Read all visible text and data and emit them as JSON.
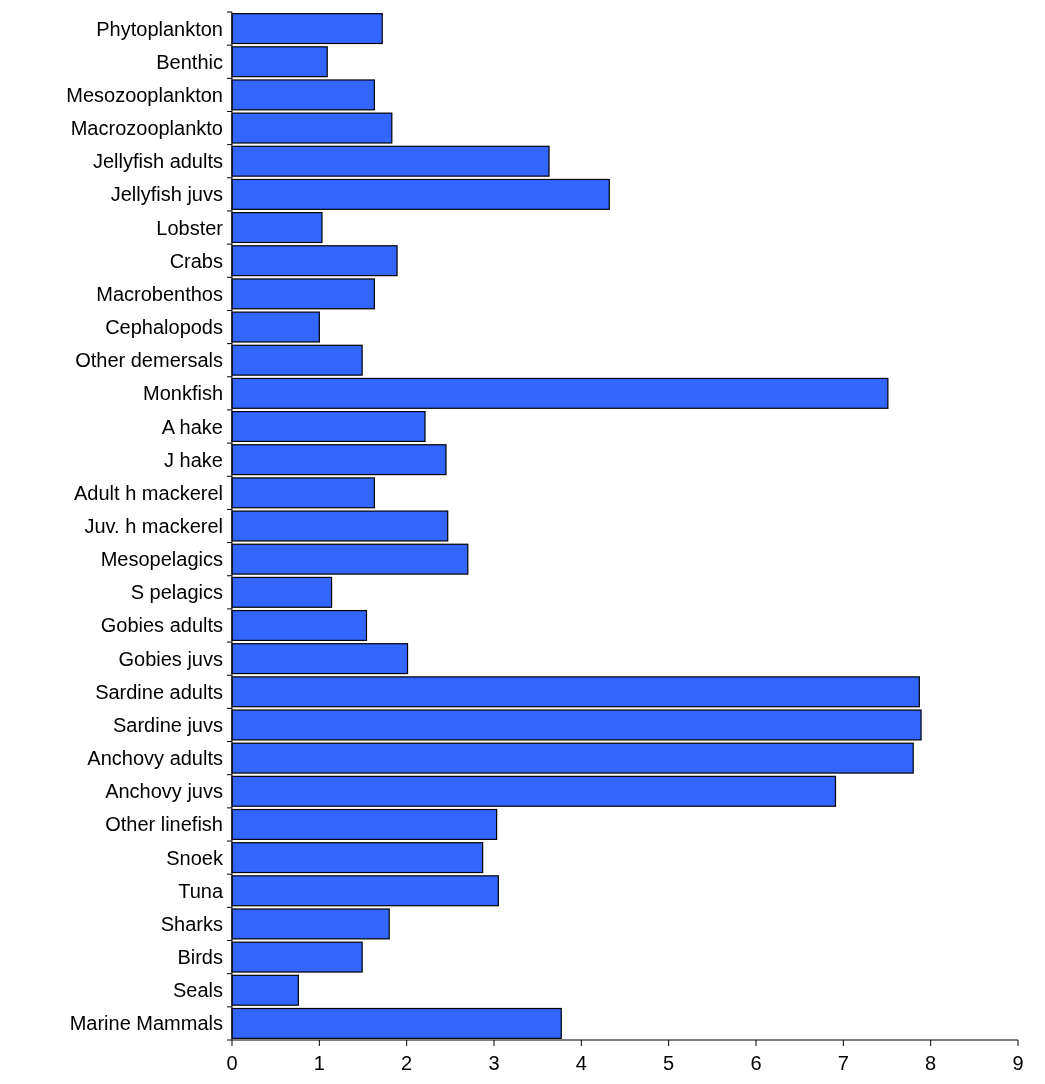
{
  "chart_data": {
    "type": "bar",
    "orientation": "horizontal",
    "categories": [
      "Phytoplankton",
      "Benthic",
      "Mesozooplankton",
      "Macrozooplankto",
      "Jellyfish adults",
      "Jellyfish juvs",
      "Lobster",
      "Crabs",
      "Macrobenthos",
      "Cephalopods",
      "Other demersals",
      "Monkfish",
      "A hake",
      "J hake",
      "Adult h mackerel",
      "Juv. h mackerel",
      "Mesopelagics",
      "S pelagics",
      "Gobies adults",
      "Gobies juvs",
      "Sardine adults",
      "Sardine juvs",
      "Anchovy adults",
      "Anchovy juvs",
      "Other linefish",
      "Snoek",
      "Tuna",
      "Sharks",
      "Birds",
      "Seals",
      "Marine Mammals"
    ],
    "values": [
      1.72,
      1.09,
      1.63,
      1.83,
      3.63,
      4.32,
      1.03,
      1.89,
      1.63,
      1.0,
      1.49,
      7.51,
      2.21,
      2.45,
      1.63,
      2.47,
      2.7,
      1.14,
      1.54,
      2.01,
      7.87,
      7.89,
      7.8,
      6.91,
      3.03,
      2.87,
      3.05,
      1.8,
      1.49,
      0.76,
      3.77
    ],
    "color": "#3366ff",
    "xlim": [
      0,
      9
    ],
    "xticks": [
      0,
      1,
      2,
      3,
      4,
      5,
      6,
      7,
      8,
      9
    ],
    "grid": false
  }
}
